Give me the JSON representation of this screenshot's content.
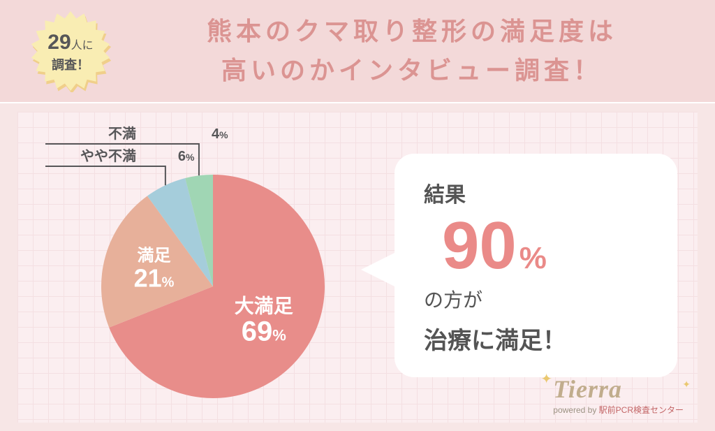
{
  "header": {
    "badge_count": "29",
    "badge_unit": "人に",
    "badge_line2": "調査！",
    "badge_bg": "#f9edb3",
    "badge_shadow": "#f0cf8a",
    "title_line1": "熊本のクマ取り整形の満足度は",
    "title_line2": "高いのかインタビュー調査！",
    "title_color": "#db9492",
    "header_bg": "#f3d9d9"
  },
  "chart": {
    "type": "pie",
    "background_color": "#fbeef0",
    "grid_color": "#f4dfe2",
    "slices": [
      {
        "label": "大満足",
        "value": 69,
        "pct_text": "69%",
        "color": "#e88d8a",
        "label_inside": true,
        "label_fontsize": 28,
        "pct_fontsize": 40
      },
      {
        "label": "満足",
        "value": 21,
        "pct_text": "21%",
        "color": "#e7b09a",
        "label_inside": true,
        "label_fontsize": 24,
        "pct_fontsize": 36
      },
      {
        "label": "やや不満",
        "value": 6,
        "pct_text": "6%",
        "color": "#a5cddb",
        "label_inside": false,
        "label_fontsize": 20,
        "pct_fontsize": 20
      },
      {
        "label": "不満",
        "value": 4,
        "pct_text": "4%",
        "color": "#a0d6b4",
        "label_inside": false,
        "label_fontsize": 20,
        "pct_fontsize": 20
      }
    ],
    "callout_line_color": "#565658"
  },
  "speech": {
    "bg": "#ffffff",
    "result_label": "結果",
    "pct_number": "90",
    "pct_unit": "%",
    "pct_color": "#ea8a88",
    "sub1": "の方が",
    "sub2": "治療に満足！",
    "text_color": "#545454"
  },
  "brand": {
    "name": "Tierra",
    "sub_prefix": "powered by ",
    "sub_highlight": "駅前PCR検査センター",
    "name_color": "#b7a27c"
  }
}
